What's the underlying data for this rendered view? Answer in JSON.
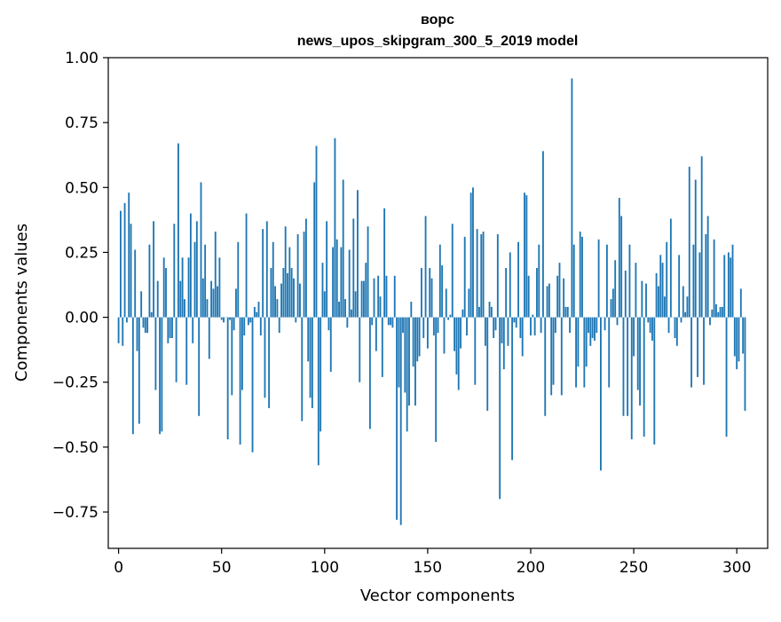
{
  "chart_data": {
    "type": "bar",
    "title": "ворс",
    "subtitle": "news_upos_skipgram_300_5_2019 model",
    "xlabel": "Vector components",
    "ylabel": "Components values",
    "xlim": [
      -5,
      315
    ],
    "ylim": [
      -0.89,
      1.0
    ],
    "xticks": [
      0,
      50,
      100,
      150,
      200,
      250,
      300
    ],
    "xtick_labels": [
      "0",
      "50",
      "100",
      "150",
      "200",
      "250",
      "300"
    ],
    "yticks": [
      -0.75,
      -0.5,
      -0.25,
      0.0,
      0.25,
      0.5,
      0.75,
      1.0
    ],
    "ytick_labels": [
      "−0.75",
      "−0.50",
      "−0.25",
      "0.00",
      "0.25",
      "0.50",
      "0.75",
      "1.00"
    ],
    "bar_color": "#1f77b4",
    "values": [
      -0.1,
      0.41,
      -0.11,
      0.44,
      -0.02,
      0.48,
      0.36,
      -0.45,
      0.26,
      -0.13,
      -0.41,
      0.1,
      -0.04,
      -0.06,
      -0.06,
      0.28,
      0.02,
      0.37,
      -0.28,
      0.14,
      -0.45,
      -0.44,
      0.23,
      0.19,
      -0.1,
      -0.08,
      -0.08,
      0.36,
      -0.25,
      0.67,
      0.14,
      0.23,
      0.07,
      -0.26,
      0.23,
      0.4,
      -0.1,
      0.29,
      0.37,
      -0.38,
      0.52,
      0.15,
      0.28,
      0.07,
      -0.16,
      0.14,
      0.11,
      0.33,
      0.12,
      0.23,
      -0.01,
      -0.02,
      0.0,
      -0.47,
      -0.01,
      -0.3,
      -0.05,
      0.11,
      0.29,
      -0.49,
      -0.28,
      -0.07,
      0.4,
      -0.03,
      -0.02,
      -0.52,
      0.04,
      0.02,
      0.06,
      -0.07,
      0.34,
      -0.31,
      0.37,
      -0.35,
      0.19,
      0.29,
      0.12,
      0.07,
      -0.06,
      0.13,
      0.19,
      0.35,
      0.17,
      0.27,
      0.19,
      0.15,
      -0.02,
      0.32,
      0.13,
      -0.4,
      0.33,
      0.38,
      -0.17,
      -0.31,
      -0.35,
      0.52,
      0.66,
      -0.57,
      -0.44,
      0.21,
      0.1,
      0.37,
      -0.05,
      -0.21,
      0.27,
      0.69,
      0.3,
      0.06,
      0.27,
      0.53,
      0.07,
      -0.04,
      0.26,
      0.03,
      0.38,
      0.1,
      0.49,
      -0.25,
      0.14,
      0.14,
      0.21,
      0.35,
      -0.43,
      -0.03,
      0.15,
      -0.13,
      0.16,
      0.08,
      -0.23,
      0.42,
      0.16,
      -0.03,
      -0.03,
      -0.04,
      0.16,
      -0.78,
      -0.27,
      -0.8,
      -0.06,
      -0.29,
      -0.44,
      -0.34,
      0.06,
      -0.19,
      -0.34,
      -0.17,
      -0.15,
      0.19,
      -0.08,
      0.39,
      -0.12,
      0.19,
      0.15,
      -0.07,
      -0.48,
      -0.06,
      0.28,
      0.2,
      -0.14,
      0.11,
      -0.01,
      0.01,
      0.36,
      -0.13,
      -0.22,
      -0.28,
      -0.12,
      0.03,
      0.31,
      -0.07,
      0.11,
      0.48,
      0.5,
      -0.26,
      0.34,
      0.04,
      0.32,
      0.33,
      -0.11,
      -0.36,
      0.06,
      0.04,
      -0.08,
      -0.05,
      0.32,
      -0.7,
      -0.1,
      -0.2,
      0.19,
      -0.11,
      0.25,
      -0.55,
      -0.02,
      -0.04,
      0.29,
      -0.08,
      -0.15,
      0.48,
      0.47,
      0.16,
      -0.07,
      0.01,
      -0.07,
      0.19,
      0.28,
      -0.06,
      0.64,
      -0.38,
      0.12,
      0.13,
      -0.3,
      -0.26,
      -0.06,
      0.16,
      0.21,
      -0.3,
      0.15,
      0.04,
      0.04,
      -0.06,
      0.92,
      0.28,
      -0.27,
      -0.19,
      0.33,
      0.31,
      -0.27,
      -0.19,
      -0.06,
      -0.11,
      -0.08,
      -0.09,
      -0.06,
      0.3,
      -0.59,
      0.0,
      -0.05,
      0.28,
      -0.27,
      0.07,
      0.11,
      0.22,
      -0.03,
      0.46,
      0.39,
      -0.38,
      0.18,
      -0.38,
      0.28,
      -0.47,
      -0.15,
      0.21,
      -0.28,
      -0.34,
      0.14,
      -0.46,
      0.13,
      -0.02,
      -0.06,
      -0.09,
      -0.49,
      0.17,
      0.12,
      0.24,
      0.21,
      0.08,
      0.29,
      -0.06,
      0.38,
      0.0,
      -0.08,
      -0.11,
      0.24,
      -0.02,
      0.12,
      0.02,
      0.08,
      0.58,
      -0.27,
      0.28,
      0.53,
      -0.23,
      0.25,
      0.62,
      -0.26,
      0.32,
      0.39,
      -0.03,
      0.03,
      0.3,
      0.05,
      0.02,
      0.04,
      0.04,
      0.24,
      -0.46,
      0.25,
      0.23,
      0.28,
      -0.15,
      -0.2,
      -0.17,
      0.11,
      -0.14,
      -0.36
    ]
  }
}
